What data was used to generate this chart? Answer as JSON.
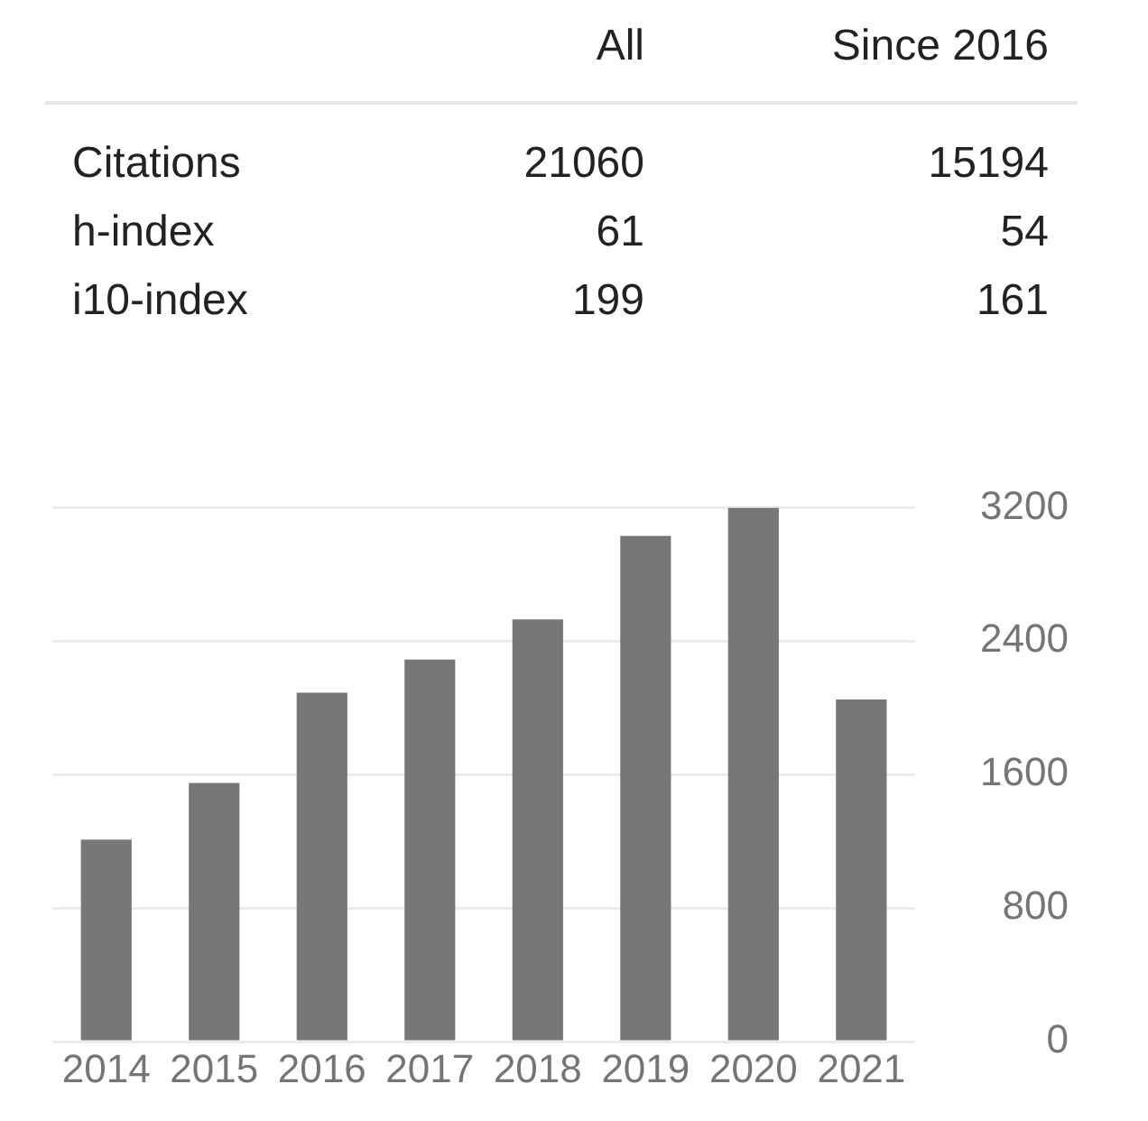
{
  "chart_data": [
    {
      "type": "other",
      "categories": [
        "All",
        "Since 2016"
      ],
      "series": [
        {
          "name": "Citations",
          "values": [
            21060,
            15194
          ]
        },
        {
          "name": "h-index",
          "values": [
            61,
            54
          ]
        },
        {
          "name": "i10-index",
          "values": [
            199,
            161
          ]
        }
      ],
      "data_labels": true
    },
    {
      "type": "bar",
      "categories": [
        "2014",
        "2015",
        "2016",
        "2017",
        "2018",
        "2019",
        "2020",
        "2021"
      ],
      "values": [
        1210,
        1550,
        2090,
        2290,
        2530,
        3030,
        3200,
        2050
      ],
      "color": "#777777",
      "ylim": [
        0,
        3200
      ],
      "yticks": [
        0,
        800,
        1600,
        2400,
        3200
      ],
      "grid": "y"
    }
  ]
}
